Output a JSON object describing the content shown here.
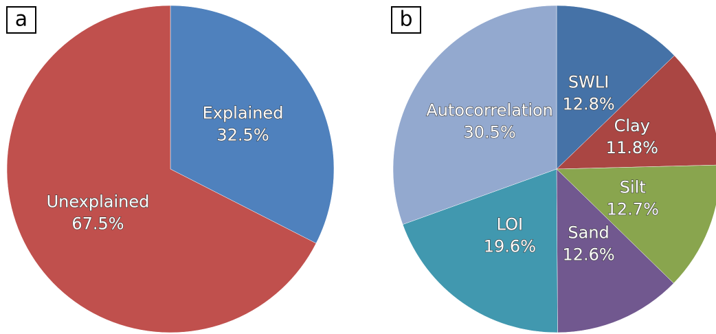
{
  "chart_data": [
    {
      "type": "pie",
      "panel_label": "a",
      "categories": [
        "Explained",
        "Unexplained"
      ],
      "values": [
        32.5,
        67.5
      ],
      "value_labels": [
        "32.5%",
        "67.5%"
      ],
      "colors": [
        "#4f81bd",
        "#c0504d"
      ]
    },
    {
      "type": "pie",
      "panel_label": "b",
      "categories": [
        "SWLI",
        "Clay",
        "Silt",
        "Sand",
        "LOI",
        "Autocorrelation"
      ],
      "values": [
        12.8,
        11.8,
        12.7,
        12.6,
        19.6,
        30.5
      ],
      "value_labels": [
        "12.8%",
        "11.8%",
        "12.7%",
        "12.6%",
        "19.6%",
        "30.5%"
      ],
      "colors": [
        "#4572a7",
        "#aa4643",
        "#89a54e",
        "#71588f",
        "#4198af",
        "#93a9cf"
      ]
    }
  ]
}
